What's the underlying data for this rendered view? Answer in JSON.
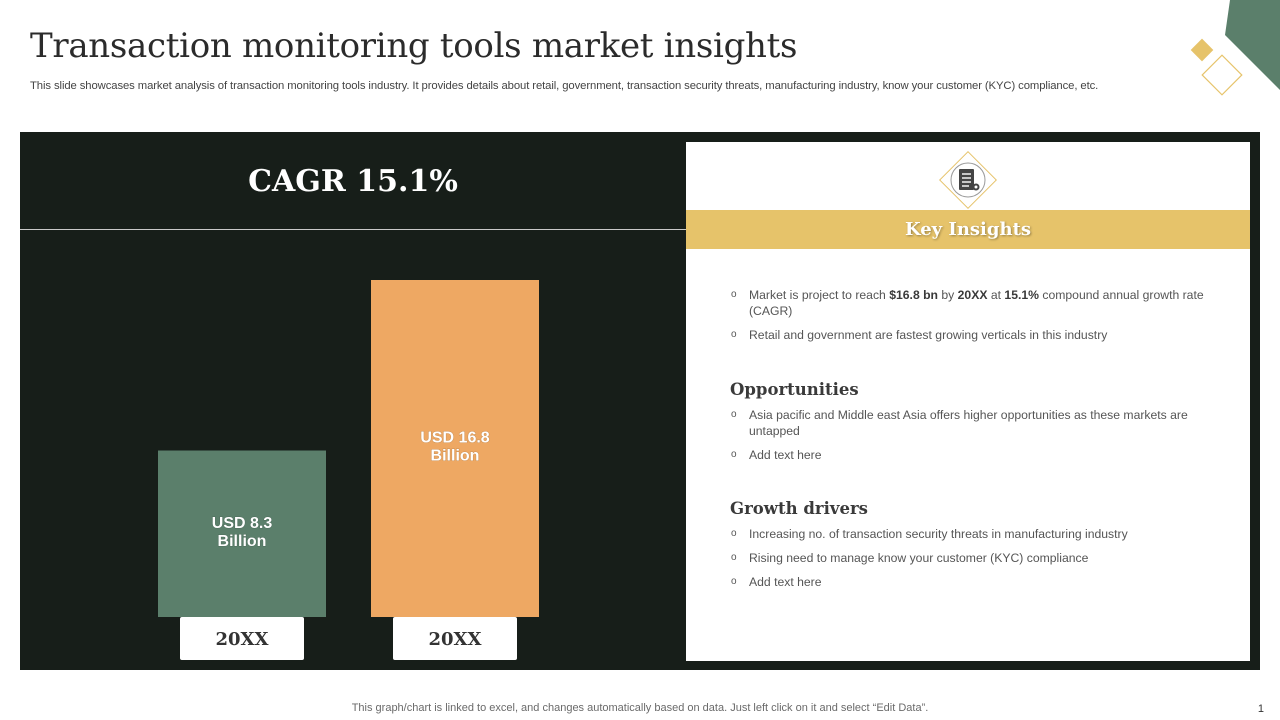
{
  "slide": {
    "title": "Transaction monitoring tools market insights",
    "subtitle": "This slide showcases market analysis of transaction monitoring tools industry. It provides details about retail, government, transaction security threats, manufacturing industry, know your customer (KYC) compliance, etc.",
    "footer": "This graph/chart is linked to excel,  and changes automatically based on data. Just left click on it and select “Edit Data”.",
    "page_number": "1"
  },
  "colors": {
    "panel_bg": "#171e19",
    "bar_green": "#5b7f6b",
    "bar_orange": "#eea863",
    "gold": "#e6c36a",
    "deco_green": "#5b7f6b"
  },
  "cagr_label": "CAGR 15.1%",
  "chart_data": {
    "type": "bar",
    "categories": [
      "20XX",
      "20XX"
    ],
    "values": [
      8.3,
      16.8
    ],
    "data_labels": [
      [
        "USD 8.3",
        "Billion"
      ],
      [
        "USD 16.8",
        "Billion"
      ]
    ],
    "colors": [
      "#5b7f6b",
      "#eea863"
    ],
    "ylim": [
      0,
      16.8
    ],
    "grid": false,
    "legend": "none"
  },
  "insights": {
    "icon": "document-list-icon",
    "header": "Key Insights",
    "key_points": [
      [
        {
          "t": "Market is project to reach ",
          "b": false
        },
        {
          "t": "$16.8 bn",
          "b": true
        },
        {
          "t": " by ",
          "b": false
        },
        {
          "t": "20XX",
          "b": true
        },
        {
          "t": " at ",
          "b": false
        },
        {
          "t": "15.1%",
          "b": true
        },
        {
          "t": " compound annual growth rate (CAGR)",
          "b": false
        }
      ],
      [
        {
          "t": "Retail and government  are fastest growing verticals in this industry",
          "b": false
        }
      ]
    ],
    "opportunities": {
      "heading": "Opportunities",
      "items": [
        "Asia pacific and Middle east Asia offers higher opportunities as these markets are untapped",
        "Add text here"
      ]
    },
    "growth_drivers": {
      "heading": "Growth drivers",
      "items": [
        "Increasing no. of transaction security threats in manufacturing industry",
        "Rising need to manage  know your customer (KYC) compliance",
        "Add text here"
      ]
    }
  }
}
